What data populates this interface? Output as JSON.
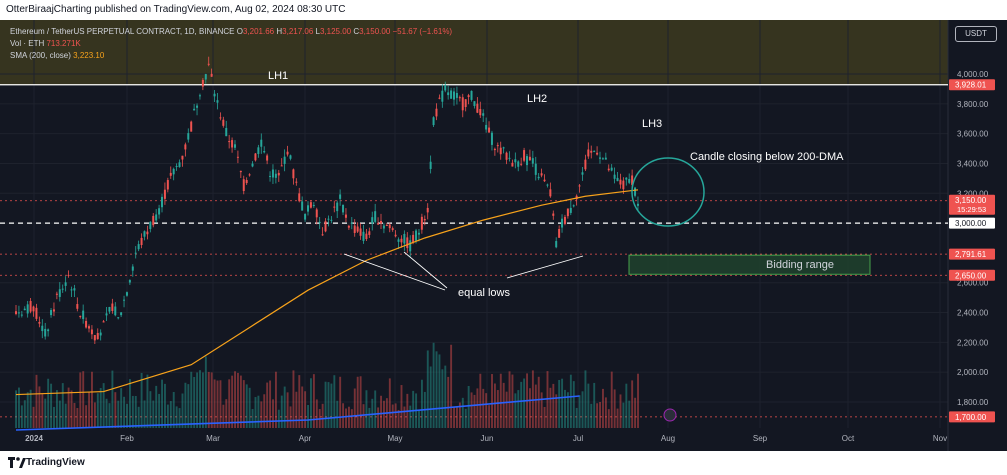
{
  "header": {
    "published": "OtterBiraajCharting published on TradingView.com, Aug 02, 2024 08:30 UTC"
  },
  "legend": {
    "title": "Ethereum / TetherUS PERPETUAL CONTRACT, 1D, BINANCE",
    "o_label": "O",
    "o": "3,201.66",
    "h_label": "H",
    "h": "3,217.06",
    "l_label": "L",
    "l": "3,125.00",
    "c_label": "C",
    "c": "3,150.00",
    "change": "−51.67 (−1.61%)",
    "vol_label": "Vol · ETH",
    "vol": "713.271K",
    "sma_label": "SMA (200, close)",
    "sma": "3,223.10"
  },
  "currency": "USDT",
  "footer": {
    "brand": "TradingView"
  },
  "colors": {
    "up": "#26a69a",
    "down": "#ef5350",
    "sma": "#f7a21b",
    "vol_ma": "#2962ff",
    "bg": "#131722",
    "resistance_band": "#3d3a1e",
    "ellipse": "#26a69a"
  },
  "chart_data": {
    "type": "candlestick",
    "x_ticks": [
      "2024",
      "Feb",
      "Mar",
      "Apr",
      "May",
      "Jun",
      "Jul",
      "Aug",
      "Sep",
      "Oct",
      "Nov"
    ],
    "y_ticks": [
      "4,000.00",
      "3,800.00",
      "3,600.00",
      "3,400.00",
      "3,200.00",
      "3,000.00",
      "2,600.00",
      "2,400.00",
      "2,200.00",
      "2,000.00",
      "1,800.00"
    ],
    "y_tick_values": [
      4000,
      3800,
      3600,
      3400,
      3200,
      3000,
      2600,
      2400,
      2200,
      2000,
      1800
    ],
    "price_labels": [
      {
        "text": "3,928.01",
        "value": 3928.01,
        "color": "#ef5350"
      },
      {
        "text": "3,150.00",
        "sub": "15:29:53",
        "value": 3150,
        "color": "#ef5350"
      },
      {
        "text": "3,000.00",
        "value": 3000,
        "color": "#ffffff"
      },
      {
        "text": "2,791.61",
        "value": 2791.61,
        "color": "#ef5350"
      },
      {
        "text": "2,650.00",
        "value": 2650,
        "color": "#ef5350"
      },
      {
        "text": "1,700.00",
        "value": 1700,
        "color": "#ef5350"
      }
    ],
    "annotations": {
      "lh1": "LH1",
      "lh2": "LH2",
      "lh3": "LH3",
      "equal_lows": "equal lows",
      "candle_note": "Candle closing below 200-DMA",
      "bidding_range": "Bidding range"
    },
    "levels": {
      "resistance": 3928.01,
      "support": 3000,
      "bid_high": 2791.61,
      "bid_low": 2650
    },
    "price_path": [
      [
        0,
        2400
      ],
      [
        6,
        2450
      ],
      [
        10,
        2250
      ],
      [
        14,
        2500
      ],
      [
        18,
        2650
      ],
      [
        22,
        2400
      ],
      [
        27,
        2250
      ],
      [
        30,
        2300
      ],
      [
        33,
        2450
      ],
      [
        35,
        2350
      ],
      [
        38,
        2550
      ],
      [
        41,
        2800
      ],
      [
        45,
        2950
      ],
      [
        49,
        3100
      ],
      [
        53,
        3300
      ],
      [
        57,
        3450
      ],
      [
        60,
        3650
      ],
      [
        63,
        3900
      ],
      [
        66,
        4050
      ],
      [
        69,
        3800
      ],
      [
        72,
        3600
      ],
      [
        75,
        3500
      ],
      [
        78,
        3250
      ],
      [
        81,
        3400
      ],
      [
        84,
        3550
      ],
      [
        87,
        3350
      ],
      [
        90,
        3300
      ],
      [
        93,
        3500
      ],
      [
        96,
        3250
      ],
      [
        99,
        3050
      ],
      [
        102,
        3150
      ],
      [
        105,
        2950
      ],
      [
        108,
        3050
      ],
      [
        111,
        3150
      ],
      [
        114,
        3000
      ],
      [
        117,
        2950
      ],
      [
        120,
        2900
      ],
      [
        123,
        3050
      ],
      [
        126,
        3000
      ],
      [
        129,
        2950
      ],
      [
        132,
        2900
      ],
      [
        135,
        2850
      ],
      [
        138,
        2950
      ],
      [
        141,
        3100
      ],
      [
        143,
        3700
      ],
      [
        145,
        3800
      ],
      [
        147,
        3900
      ],
      [
        150,
        3850
      ],
      [
        153,
        3800
      ],
      [
        156,
        3850
      ],
      [
        159,
        3750
      ],
      [
        162,
        3600
      ],
      [
        165,
        3500
      ],
      [
        168,
        3450
      ],
      [
        171,
        3400
      ],
      [
        174,
        3450
      ],
      [
        177,
        3400
      ],
      [
        180,
        3300
      ],
      [
        183,
        3200
      ],
      [
        185,
        2850
      ],
      [
        187,
        3000
      ],
      [
        190,
        3100
      ],
      [
        193,
        3250
      ],
      [
        196,
        3450
      ],
      [
        199,
        3500
      ],
      [
        202,
        3400
      ],
      [
        205,
        3300
      ],
      [
        208,
        3250
      ],
      [
        211,
        3300
      ],
      [
        213,
        3150
      ]
    ],
    "sma_path": [
      [
        0,
        1850
      ],
      [
        30,
        1870
      ],
      [
        60,
        2050
      ],
      [
        80,
        2300
      ],
      [
        100,
        2550
      ],
      [
        120,
        2750
      ],
      [
        140,
        2900
      ],
      [
        160,
        3020
      ],
      [
        180,
        3120
      ],
      [
        195,
        3180
      ],
      [
        213,
        3223
      ]
    ]
  }
}
